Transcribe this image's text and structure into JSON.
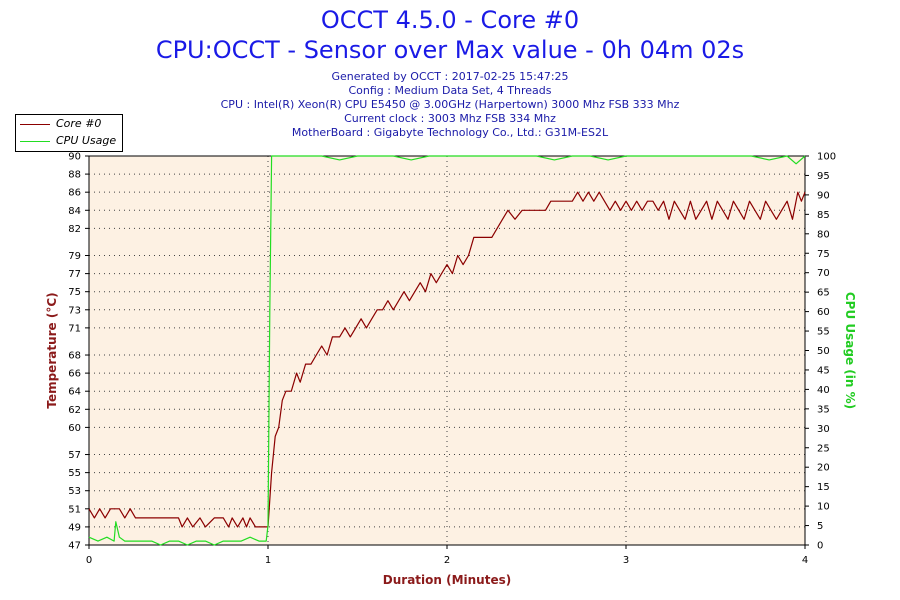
{
  "header": {
    "title": "OCCT 4.5.0 - Core #0",
    "subtitle": "CPU:OCCT - Sensor over Max value - 0h 04m 02s",
    "info_lines": [
      "Generated by OCCT : 2017-02-25 15:47:25",
      "Config : Medium Data Set, 4 Threads",
      "CPU : Intel(R) Xeon(R) CPU E5450 @ 3.00GHz (Harpertown) 3000 Mhz FSB 333 Mhz",
      "Current clock : 3003 Mhz FSB 334 Mhz",
      "MotherBoard : Gigabyte Technology Co., Ltd.: G31M-ES2L"
    ]
  },
  "colors": {
    "core_series": "#8b0000",
    "cpu_usage_series": "#22dd22",
    "plot_background": "#fdf1e3",
    "grid": "#444444",
    "axis_label_left": "#8b1a1a",
    "axis_label_right": "#22cc22",
    "axis_label_x": "#8b1a1a"
  },
  "chart_data": {
    "type": "line",
    "xlabel": "Duration (Minutes)",
    "ylabel": "Temperature (°C)",
    "ylabel_right": "CPU Usage (in %)",
    "xlim": [
      0,
      4
    ],
    "x_ticks": [
      "0",
      "1",
      "2",
      "3",
      "4"
    ],
    "ylim": [
      47,
      90
    ],
    "y_ticks": [
      47,
      49,
      51,
      53,
      55,
      57,
      60,
      62,
      64,
      66,
      68,
      71,
      73,
      75,
      77,
      79,
      82,
      84,
      86,
      88,
      90
    ],
    "y2lim": [
      0,
      100
    ],
    "y2_ticks": [
      0,
      5,
      10,
      15,
      20,
      25,
      30,
      35,
      40,
      45,
      50,
      55,
      60,
      65,
      70,
      75,
      80,
      85,
      90,
      95,
      100
    ],
    "grid": true,
    "legend_position": "top-left",
    "series": [
      {
        "name": "Core #0",
        "axis": "left",
        "points": [
          [
            0.0,
            51
          ],
          [
            0.03,
            50
          ],
          [
            0.06,
            51
          ],
          [
            0.09,
            50
          ],
          [
            0.12,
            51
          ],
          [
            0.17,
            51
          ],
          [
            0.2,
            50
          ],
          [
            0.23,
            51
          ],
          [
            0.26,
            50
          ],
          [
            0.35,
            50
          ],
          [
            0.45,
            50
          ],
          [
            0.5,
            50
          ],
          [
            0.52,
            49
          ],
          [
            0.55,
            50
          ],
          [
            0.58,
            49
          ],
          [
            0.62,
            50
          ],
          [
            0.65,
            49
          ],
          [
            0.7,
            50
          ],
          [
            0.75,
            50
          ],
          [
            0.78,
            49
          ],
          [
            0.8,
            50
          ],
          [
            0.83,
            49
          ],
          [
            0.86,
            50
          ],
          [
            0.88,
            49
          ],
          [
            0.9,
            50
          ],
          [
            0.93,
            49
          ],
          [
            1.0,
            49
          ],
          [
            1.02,
            55
          ],
          [
            1.04,
            59
          ],
          [
            1.06,
            60
          ],
          [
            1.08,
            63
          ],
          [
            1.1,
            64
          ],
          [
            1.13,
            64
          ],
          [
            1.16,
            66
          ],
          [
            1.18,
            65
          ],
          [
            1.21,
            67
          ],
          [
            1.24,
            67
          ],
          [
            1.27,
            68
          ],
          [
            1.3,
            69
          ],
          [
            1.33,
            68
          ],
          [
            1.36,
            70
          ],
          [
            1.4,
            70
          ],
          [
            1.43,
            71
          ],
          [
            1.46,
            70
          ],
          [
            1.49,
            71
          ],
          [
            1.52,
            72
          ],
          [
            1.55,
            71
          ],
          [
            1.58,
            72
          ],
          [
            1.61,
            73
          ],
          [
            1.64,
            73
          ],
          [
            1.67,
            74
          ],
          [
            1.7,
            73
          ],
          [
            1.73,
            74
          ],
          [
            1.76,
            75
          ],
          [
            1.79,
            74
          ],
          [
            1.82,
            75
          ],
          [
            1.85,
            76
          ],
          [
            1.88,
            75
          ],
          [
            1.91,
            77
          ],
          [
            1.94,
            76
          ],
          [
            1.97,
            77
          ],
          [
            2.0,
            78
          ],
          [
            2.03,
            77
          ],
          [
            2.06,
            79
          ],
          [
            2.09,
            78
          ],
          [
            2.12,
            79
          ],
          [
            2.15,
            81
          ],
          [
            2.2,
            81
          ],
          [
            2.25,
            81
          ],
          [
            2.28,
            82
          ],
          [
            2.31,
            83
          ],
          [
            2.34,
            84
          ],
          [
            2.38,
            83
          ],
          [
            2.42,
            84
          ],
          [
            2.5,
            84
          ],
          [
            2.55,
            84
          ],
          [
            2.58,
            85
          ],
          [
            2.62,
            85
          ],
          [
            2.66,
            85
          ],
          [
            2.7,
            85
          ],
          [
            2.73,
            86
          ],
          [
            2.76,
            85
          ],
          [
            2.79,
            86
          ],
          [
            2.82,
            85
          ],
          [
            2.85,
            86
          ],
          [
            2.88,
            85
          ],
          [
            2.91,
            84
          ],
          [
            2.94,
            85
          ],
          [
            2.97,
            84
          ],
          [
            3.0,
            85
          ],
          [
            3.03,
            84
          ],
          [
            3.06,
            85
          ],
          [
            3.09,
            84
          ],
          [
            3.12,
            85
          ],
          [
            3.15,
            85
          ],
          [
            3.18,
            84
          ],
          [
            3.21,
            85
          ],
          [
            3.24,
            83
          ],
          [
            3.27,
            85
          ],
          [
            3.3,
            84
          ],
          [
            3.33,
            83
          ],
          [
            3.36,
            85
          ],
          [
            3.39,
            83
          ],
          [
            3.42,
            84
          ],
          [
            3.45,
            85
          ],
          [
            3.48,
            83
          ],
          [
            3.51,
            85
          ],
          [
            3.54,
            84
          ],
          [
            3.57,
            83
          ],
          [
            3.6,
            85
          ],
          [
            3.63,
            84
          ],
          [
            3.66,
            83
          ],
          [
            3.69,
            85
          ],
          [
            3.72,
            84
          ],
          [
            3.75,
            83
          ],
          [
            3.78,
            85
          ],
          [
            3.81,
            84
          ],
          [
            3.84,
            83
          ],
          [
            3.87,
            84
          ],
          [
            3.9,
            85
          ],
          [
            3.93,
            83
          ],
          [
            3.96,
            86
          ],
          [
            3.98,
            85
          ],
          [
            4.0,
            86
          ]
        ]
      },
      {
        "name": "CPU Usage",
        "axis": "right",
        "points": [
          [
            0.0,
            2
          ],
          [
            0.05,
            1
          ],
          [
            0.1,
            2
          ],
          [
            0.14,
            1
          ],
          [
            0.15,
            6
          ],
          [
            0.17,
            2
          ],
          [
            0.2,
            1
          ],
          [
            0.25,
            1
          ],
          [
            0.3,
            1
          ],
          [
            0.35,
            1
          ],
          [
            0.4,
            0
          ],
          [
            0.45,
            1
          ],
          [
            0.5,
            1
          ],
          [
            0.55,
            0
          ],
          [
            0.6,
            1
          ],
          [
            0.65,
            1
          ],
          [
            0.7,
            0
          ],
          [
            0.75,
            1
          ],
          [
            0.8,
            1
          ],
          [
            0.85,
            1
          ],
          [
            0.9,
            2
          ],
          [
            0.95,
            1
          ],
          [
            0.99,
            1
          ],
          [
            1.0,
            5
          ],
          [
            1.01,
            60
          ],
          [
            1.02,
            100
          ],
          [
            1.1,
            100
          ],
          [
            1.2,
            100
          ],
          [
            1.3,
            100
          ],
          [
            1.4,
            99
          ],
          [
            1.5,
            100
          ],
          [
            1.6,
            100
          ],
          [
            1.7,
            100
          ],
          [
            1.8,
            99
          ],
          [
            1.9,
            100
          ],
          [
            2.0,
            100
          ],
          [
            2.1,
            100
          ],
          [
            2.2,
            100
          ],
          [
            2.3,
            100
          ],
          [
            2.4,
            100
          ],
          [
            2.5,
            100
          ],
          [
            2.6,
            99
          ],
          [
            2.7,
            100
          ],
          [
            2.8,
            100
          ],
          [
            2.9,
            99
          ],
          [
            3.0,
            100
          ],
          [
            3.1,
            100
          ],
          [
            3.2,
            100
          ],
          [
            3.3,
            100
          ],
          [
            3.4,
            100
          ],
          [
            3.5,
            100
          ],
          [
            3.6,
            100
          ],
          [
            3.7,
            100
          ],
          [
            3.8,
            99
          ],
          [
            3.9,
            100
          ],
          [
            3.95,
            98
          ],
          [
            4.0,
            100
          ]
        ]
      }
    ]
  }
}
